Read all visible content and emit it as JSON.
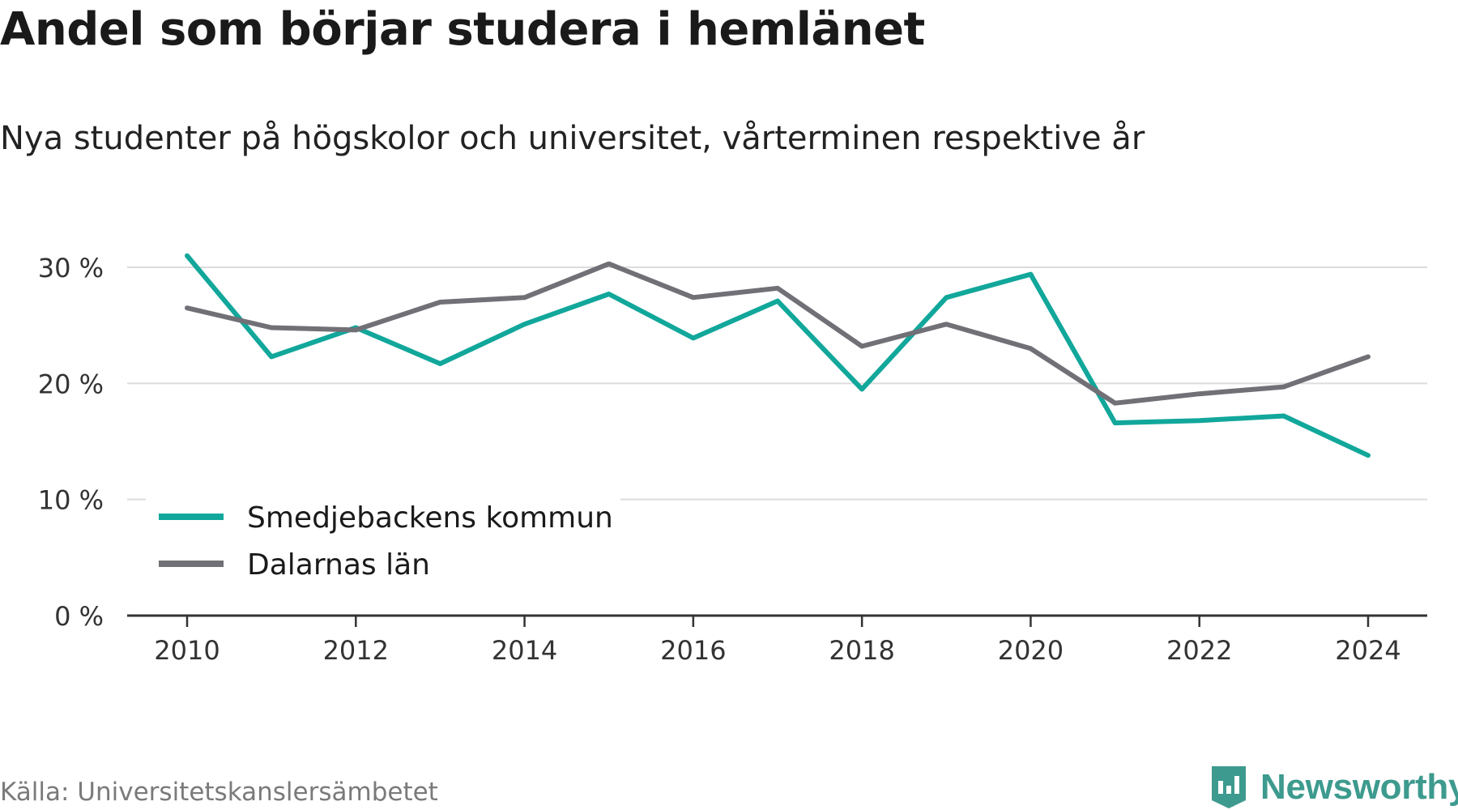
{
  "chart_data": {
    "type": "line",
    "title": "Andel som börjar studera i hemlänet",
    "subtitle": "Nya studenter på högskolor och universitet, vårterminen respektive år",
    "x": [
      2010,
      2011,
      2012,
      2013,
      2014,
      2015,
      2016,
      2017,
      2018,
      2019,
      2020,
      2021,
      2022,
      2023,
      2024
    ],
    "series": [
      {
        "name": "Smedjebackens kommun",
        "color": "#12a79b",
        "values": [
          31.0,
          22.3,
          24.8,
          21.7,
          25.1,
          27.7,
          23.9,
          27.1,
          19.5,
          27.4,
          29.4,
          16.6,
          16.8,
          17.2,
          13.8
        ]
      },
      {
        "name": "Dalarnas län",
        "color": "#717077",
        "values": [
          26.5,
          24.8,
          24.6,
          27.0,
          27.4,
          30.3,
          27.4,
          28.2,
          23.2,
          25.1,
          23.0,
          18.3,
          19.1,
          19.7,
          22.3
        ]
      }
    ],
    "xticks": [
      "2010",
      "2012",
      "2014",
      "2016",
      "2018",
      "2020",
      "2022",
      "2024"
    ],
    "xtick_values": [
      2010,
      2012,
      2014,
      2016,
      2018,
      2020,
      2022,
      2024
    ],
    "yticks": [
      "0 %",
      "10 %",
      "20 %",
      "30 %"
    ],
    "ytick_values": [
      0,
      10,
      20,
      30
    ],
    "ylim": [
      0,
      30
    ],
    "xlim": [
      2010,
      2024
    ],
    "grid": true,
    "legend_position": "bottom-left"
  },
  "source": "Källa: Universitetskanslersämbetet",
  "brand": {
    "name": "Newsworthy",
    "icon": "newsworthy-logo-icon",
    "color": "#3d9a8e"
  }
}
